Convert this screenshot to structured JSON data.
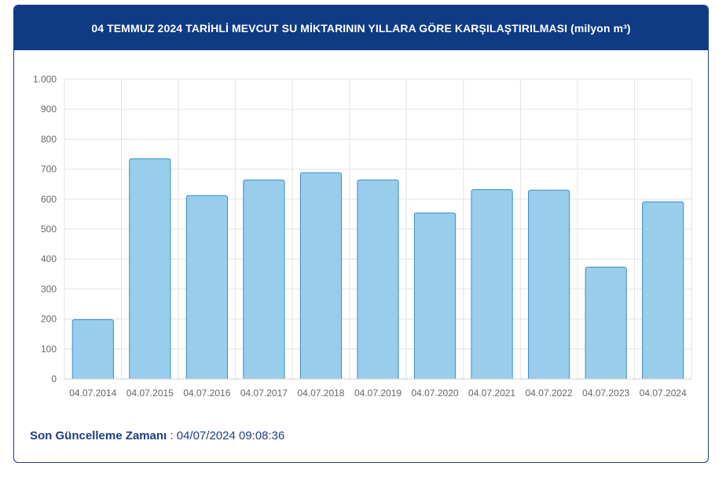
{
  "header": {
    "title": "04 TEMMUZ 2024 TARİHLİ MEVCUT SU MİKTARININ YILLARA GÖRE KARŞILAŞTIRILMASI (milyon m³)"
  },
  "footer": {
    "label": "Son Güncelleme Zamanı",
    "separator": " : ",
    "value": "04/07/2024 09:08:36"
  },
  "colors": {
    "header_bg": "#0f3b85",
    "bar_fill": "#98cdeb",
    "bar_stroke": "#3a8fc7",
    "grid": "#e3e3e3"
  },
  "chart_data": {
    "type": "bar",
    "categories": [
      "04.07.2014",
      "04.07.2015",
      "04.07.2016",
      "04.07.2017",
      "04.07.2018",
      "04.07.2019",
      "04.07.2020",
      "04.07.2021",
      "04.07.2022",
      "04.07.2023",
      "04.07.2024"
    ],
    "values": [
      198,
      735,
      612,
      664,
      688,
      664,
      554,
      632,
      630,
      373,
      591
    ],
    "ylim": [
      0,
      1000
    ],
    "yticks": [
      0,
      100,
      200,
      300,
      400,
      500,
      600,
      700,
      800,
      900,
      1000
    ],
    "ytick_labels": [
      "0",
      "100",
      "200",
      "300",
      "400",
      "500",
      "600",
      "700",
      "800",
      "900",
      "1.000"
    ],
    "grid": true,
    "title": "",
    "xlabel": "",
    "ylabel": ""
  }
}
